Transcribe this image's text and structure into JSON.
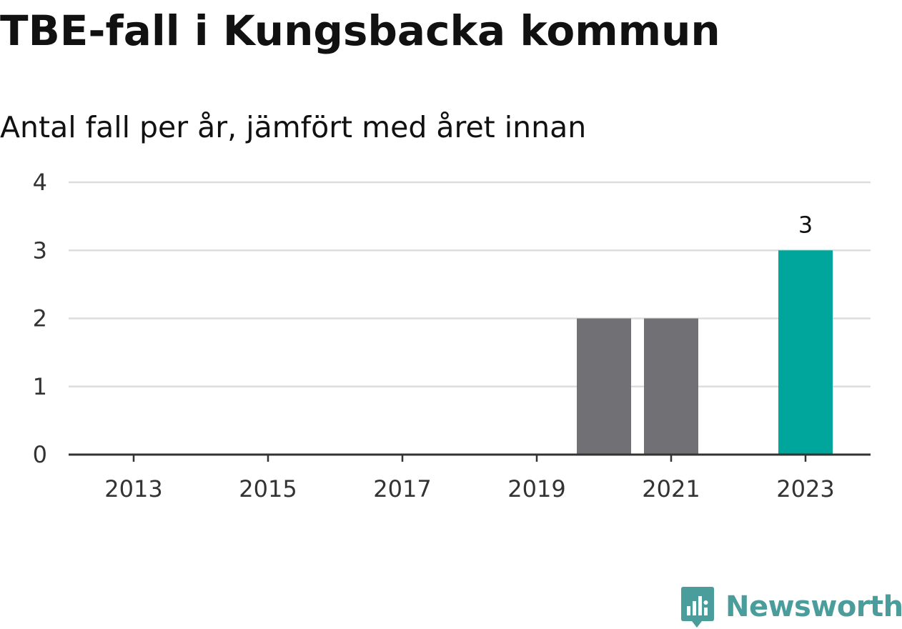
{
  "header": {
    "title": "TBE-fall i Kungsbacka kommun",
    "subtitle": "Antal fall per år, jämfört med året innan"
  },
  "brand": {
    "name": "Newsworthy",
    "icon": "newsworthy-logo-icon",
    "color": "#4a9d9a"
  },
  "chart_data": {
    "type": "bar",
    "categories": [
      "2013",
      "2014",
      "2015",
      "2016",
      "2017",
      "2018",
      "2019",
      "2020",
      "2021",
      "2022",
      "2023"
    ],
    "values": [
      0,
      0,
      0,
      0,
      0,
      0,
      0,
      2,
      2,
      0,
      3
    ],
    "highlight_index": 10,
    "x_tick_labels": [
      "2013",
      "2015",
      "2017",
      "2019",
      "2021",
      "2023"
    ],
    "y_ticks": [
      0,
      1,
      2,
      3,
      4
    ],
    "ylim": [
      0,
      4
    ],
    "data_labels": [
      {
        "index": 10,
        "text": "3"
      }
    ],
    "grid": true,
    "colors": {
      "bar": "#717075",
      "highlight": "#00a59b",
      "grid": "#dddddd",
      "axis": "#333333"
    }
  }
}
